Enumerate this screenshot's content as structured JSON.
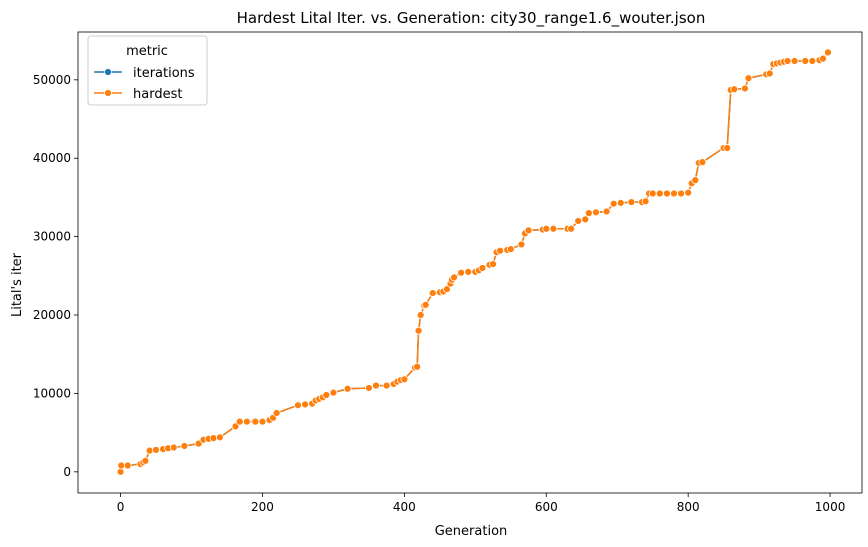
{
  "chart_data": {
    "type": "line",
    "title": "Hardest Lital Iter. vs. Generation: city30_range1.6_wouter.json",
    "xlabel": "Generation",
    "ylabel": "Lital's iter",
    "xlim": [
      -60,
      1045
    ],
    "ylim": [
      -2700,
      56100
    ],
    "xticks": [
      0,
      200,
      400,
      600,
      800,
      1000
    ],
    "yticks": [
      0,
      10000,
      20000,
      30000,
      40000,
      50000
    ],
    "grid": false,
    "legend": {
      "title": "metric",
      "placement": "top-left",
      "entries": [
        {
          "label": "iterations",
          "color": "#1f77b4"
        },
        {
          "label": "hardest",
          "color": "#ff7f0e"
        }
      ]
    },
    "series": [
      {
        "name": "iterations",
        "color": "#1f77b4",
        "x": [
          0,
          1,
          10,
          28,
          32,
          35,
          41,
          50,
          60,
          67,
          75,
          90,
          110,
          117,
          124,
          131,
          140,
          162,
          168,
          178,
          190,
          200,
          210,
          215,
          220,
          250,
          260,
          270,
          275,
          280,
          285,
          290,
          300,
          320,
          350,
          360,
          375,
          385,
          390,
          395,
          400,
          415,
          418,
          420,
          423,
          428,
          430,
          440,
          450,
          455,
          460,
          465,
          467,
          470,
          480,
          490,
          500,
          505,
          510,
          520,
          525,
          530,
          535,
          545,
          550,
          565,
          570,
          575,
          595,
          600,
          610,
          630,
          635,
          645,
          655,
          660,
          670,
          685,
          695,
          705,
          720,
          735,
          740,
          745,
          750,
          760,
          770,
          780,
          790,
          800,
          805,
          810,
          815,
          820,
          850,
          855,
          860,
          865,
          880,
          885,
          910,
          915,
          920,
          925,
          930,
          935,
          940,
          950,
          965,
          975,
          985,
          990,
          997
        ],
        "values": [
          0,
          800,
          800,
          1000,
          1200,
          1400,
          2700,
          2800,
          2900,
          3000,
          3100,
          3300,
          3600,
          4100,
          4200,
          4300,
          4400,
          5800,
          6400,
          6400,
          6400,
          6400,
          6600,
          6900,
          7500,
          8500,
          8600,
          8700,
          9100,
          9300,
          9500,
          9800,
          10100,
          10600,
          10700,
          11000,
          11000,
          11200,
          11500,
          11700,
          11800,
          13300,
          13400,
          18000,
          20000,
          21200,
          21300,
          22800,
          22900,
          23000,
          23300,
          24000,
          24500,
          24800,
          25400,
          25500,
          25500,
          25700,
          26000,
          26400,
          26500,
          28000,
          28200,
          28300,
          28400,
          29000,
          30400,
          30800,
          30900,
          31000,
          31000,
          31000,
          31000,
          32000,
          32200,
          33000,
          33100,
          33200,
          34200,
          34300,
          34400,
          34400,
          34500,
          35500,
          35500,
          35500,
          35500,
          35500,
          35500,
          35600,
          36800,
          37200,
          39400,
          39500,
          41300,
          41300,
          48700,
          48800,
          48900,
          50200,
          50700,
          50800,
          52000,
          52100,
          52200,
          52300,
          52400,
          52400,
          52400,
          52400,
          52500,
          52700,
          53500
        ]
      },
      {
        "name": "hardest",
        "color": "#ff7f0e",
        "x": [
          0,
          1,
          10,
          28,
          32,
          35,
          41,
          50,
          60,
          67,
          75,
          90,
          110,
          117,
          124,
          131,
          140,
          162,
          168,
          178,
          190,
          200,
          210,
          215,
          220,
          250,
          260,
          270,
          275,
          280,
          285,
          290,
          300,
          320,
          350,
          360,
          375,
          385,
          390,
          395,
          400,
          415,
          418,
          420,
          423,
          428,
          430,
          440,
          450,
          455,
          460,
          465,
          467,
          470,
          480,
          490,
          500,
          505,
          510,
          520,
          525,
          530,
          535,
          545,
          550,
          565,
          570,
          575,
          595,
          600,
          610,
          630,
          635,
          645,
          655,
          660,
          670,
          685,
          695,
          705,
          720,
          735,
          740,
          745,
          750,
          760,
          770,
          780,
          790,
          800,
          805,
          810,
          815,
          820,
          850,
          855,
          860,
          865,
          880,
          885,
          910,
          915,
          920,
          925,
          930,
          935,
          940,
          950,
          965,
          975,
          985,
          990,
          997
        ],
        "values": [
          0,
          800,
          800,
          1000,
          1200,
          1400,
          2700,
          2800,
          2900,
          3000,
          3100,
          3300,
          3600,
          4100,
          4200,
          4300,
          4400,
          5800,
          6400,
          6400,
          6400,
          6400,
          6600,
          6900,
          7500,
          8500,
          8600,
          8700,
          9100,
          9300,
          9500,
          9800,
          10100,
          10600,
          10700,
          11000,
          11000,
          11200,
          11500,
          11700,
          11800,
          13300,
          13400,
          18000,
          20000,
          21200,
          21300,
          22800,
          22900,
          23000,
          23300,
          24000,
          24500,
          24800,
          25400,
          25500,
          25500,
          25700,
          26000,
          26400,
          26500,
          28000,
          28200,
          28300,
          28400,
          29000,
          30400,
          30800,
          30900,
          31000,
          31000,
          31000,
          31000,
          32000,
          32200,
          33000,
          33100,
          33200,
          34200,
          34300,
          34400,
          34400,
          34500,
          35500,
          35500,
          35500,
          35500,
          35500,
          35500,
          35600,
          36800,
          37200,
          39400,
          39500,
          41300,
          41300,
          48700,
          48800,
          48900,
          50200,
          50700,
          50800,
          52000,
          52100,
          52200,
          52300,
          52400,
          52400,
          52400,
          52400,
          52500,
          52700,
          53500
        ]
      }
    ]
  }
}
